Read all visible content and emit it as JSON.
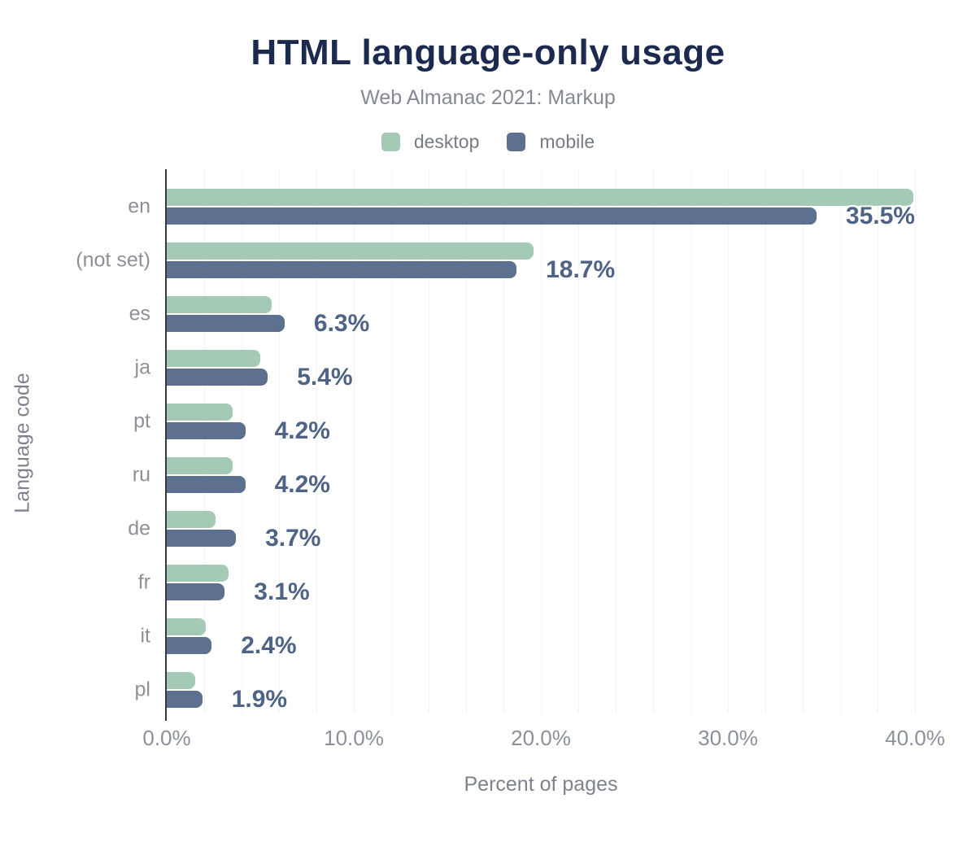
{
  "header": {
    "title": "HTML language-only usage",
    "subtitle": "Web Almanac 2021: Markup"
  },
  "legend": {
    "items": [
      {
        "label": "desktop",
        "color": "#a4cab5"
      },
      {
        "label": "mobile",
        "color": "#5e7090"
      }
    ]
  },
  "chart_data": {
    "type": "bar",
    "orientation": "horizontal",
    "title": "HTML language-only usage",
    "subtitle": "Web Almanac 2021: Markup",
    "categories": [
      "en",
      "(not set)",
      "es",
      "ja",
      "pt",
      "ru",
      "de",
      "fr",
      "it",
      "pl"
    ],
    "series": [
      {
        "name": "desktop",
        "color": "#a4cab5",
        "values": [
          39.9,
          19.6,
          5.6,
          5.0,
          3.5,
          3.5,
          2.6,
          3.3,
          2.1,
          1.5
        ]
      },
      {
        "name": "mobile",
        "color": "#5e7090",
        "values": [
          35.5,
          18.7,
          6.3,
          5.4,
          4.2,
          4.2,
          3.7,
          3.1,
          2.4,
          1.9
        ]
      }
    ],
    "value_labels": [
      "35.5%",
      "18.7%",
      "6.3%",
      "5.4%",
      "4.2%",
      "4.2%",
      "3.7%",
      "3.1%",
      "2.4%",
      "1.9%"
    ],
    "value_labels_for_series": "mobile",
    "xlabel": "Percent of pages",
    "ylabel": "Language code",
    "xlim": [
      0,
      40
    ],
    "xticks": [
      0,
      10,
      20,
      30,
      40
    ],
    "xtick_labels": [
      "0.0%",
      "10.0%",
      "20.0%",
      "30.0%",
      "40.0%"
    ],
    "gridline_step": 2,
    "grid": "vertical",
    "legend_position": "top"
  },
  "colors": {
    "title": "#1b2a4e",
    "subtitle": "#858993",
    "axis_text": "#8b909b",
    "value_label": "#4e6386",
    "gridline": "#f2f2f2",
    "axis_line": "#37393c",
    "background": "#ffffff"
  }
}
